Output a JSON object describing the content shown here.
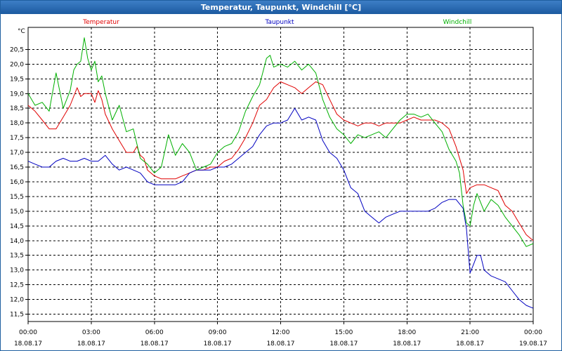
{
  "window": {
    "title": "Temperatur, Taupunkt, Windchill [°C]"
  },
  "colors": {
    "title_bar": "#1c5aa0",
    "temperatur": "#e00000",
    "taupunkt": "#0000c0",
    "windchill": "#00b000",
    "grid": "#000000"
  },
  "chart_data": {
    "type": "line",
    "title": "Temperatur, Taupunkt, Windchill [°C]",
    "ylabel": "°C",
    "xlabel": "",
    "ylim": [
      11.25,
      21.25
    ],
    "yticks": [
      11.5,
      12.0,
      12.5,
      13.0,
      13.5,
      14.0,
      14.5,
      15.0,
      15.5,
      16.0,
      16.5,
      17.0,
      17.5,
      18.0,
      18.5,
      19.0,
      19.5,
      20.0,
      20.5
    ],
    "ytick_labels": [
      "11,5",
      "12,0",
      "12,5",
      "13,0",
      "13,5",
      "14,0",
      "14,5",
      "15,0",
      "15,5",
      "16,0",
      "16,5",
      "17,0",
      "17,5",
      "18,0",
      "18,5",
      "19,0",
      "19,5",
      "20,0",
      "20,5"
    ],
    "xlim": [
      0,
      24
    ],
    "xticks": [
      0,
      3,
      6,
      9,
      12,
      15,
      18,
      21,
      24
    ],
    "xtick_time": [
      "00:00",
      "03:00",
      "06:00",
      "09:00",
      "12:00",
      "15:00",
      "18:00",
      "21:00",
      "00:00"
    ],
    "xtick_date": [
      "18.08.17",
      "18.08.17",
      "18.08.17",
      "18.08.17",
      "18.08.17",
      "18.08.17",
      "18.08.17",
      "18.08.17",
      "19.08.17"
    ],
    "grid": true,
    "legend_placement": "top",
    "series": [
      {
        "name": "Temperatur",
        "color": "#e00000",
        "x": [
          0,
          0.33,
          0.67,
          1.0,
          1.33,
          1.67,
          2.0,
          2.33,
          2.5,
          2.67,
          3.0,
          3.17,
          3.33,
          3.5,
          3.67,
          4.0,
          4.33,
          4.67,
          5.0,
          5.17,
          5.33,
          5.5,
          5.67,
          6.0,
          6.33,
          6.67,
          7.0,
          7.33,
          7.67,
          8.0,
          8.33,
          8.67,
          9.0,
          9.33,
          9.67,
          10.0,
          10.33,
          10.67,
          11.0,
          11.33,
          11.67,
          12.0,
          12.33,
          12.67,
          13.0,
          13.33,
          13.67,
          14.0,
          14.33,
          14.67,
          15.0,
          15.33,
          15.67,
          16.0,
          16.33,
          16.67,
          17.0,
          17.33,
          17.67,
          18.0,
          18.33,
          18.67,
          19.0,
          19.33,
          19.67,
          20.0,
          20.33,
          20.67,
          20.83,
          21.0,
          21.33,
          21.67,
          22.0,
          22.33,
          22.67,
          23.0,
          23.33,
          23.67,
          24.0
        ],
        "values": [
          18.6,
          18.4,
          18.1,
          17.8,
          17.8,
          18.2,
          18.6,
          19.2,
          18.9,
          19.0,
          19.0,
          18.7,
          19.1,
          18.8,
          18.3,
          17.8,
          17.4,
          17.0,
          17.0,
          17.2,
          16.9,
          16.8,
          16.4,
          16.2,
          16.1,
          16.1,
          16.1,
          16.2,
          16.3,
          16.4,
          16.4,
          16.5,
          16.5,
          16.7,
          16.8,
          17.1,
          17.5,
          18.0,
          18.6,
          18.8,
          19.2,
          19.4,
          19.3,
          19.2,
          19.0,
          19.2,
          19.4,
          19.3,
          18.8,
          18.3,
          18.1,
          18.0,
          17.9,
          18.0,
          18.0,
          17.9,
          18.0,
          18.0,
          18.0,
          18.1,
          18.2,
          18.1,
          18.1,
          18.1,
          18.0,
          17.8,
          17.2,
          16.4,
          15.6,
          15.8,
          15.9,
          15.9,
          15.8,
          15.7,
          15.2,
          15.0,
          14.6,
          14.2,
          14.0
        ]
      },
      {
        "name": "Taupunkt",
        "color": "#0000c0",
        "x": [
          0,
          0.33,
          0.67,
          1.0,
          1.33,
          1.67,
          2.0,
          2.33,
          2.67,
          3.0,
          3.33,
          3.67,
          4.0,
          4.33,
          4.67,
          5.0,
          5.33,
          5.67,
          6.0,
          6.33,
          6.67,
          7.0,
          7.33,
          7.67,
          8.0,
          8.33,
          8.67,
          9.0,
          9.33,
          9.67,
          10.0,
          10.33,
          10.67,
          11.0,
          11.33,
          11.67,
          12.0,
          12.33,
          12.67,
          13.0,
          13.33,
          13.67,
          14.0,
          14.33,
          14.67,
          15.0,
          15.33,
          15.67,
          16.0,
          16.33,
          16.67,
          17.0,
          17.33,
          17.67,
          18.0,
          18.33,
          18.67,
          19.0,
          19.33,
          19.67,
          20.0,
          20.33,
          20.67,
          20.83,
          21.0,
          21.17,
          21.33,
          21.5,
          21.67,
          22.0,
          22.33,
          22.67,
          23.0,
          23.33,
          23.67,
          24.0
        ],
        "values": [
          16.7,
          16.6,
          16.5,
          16.5,
          16.7,
          16.8,
          16.7,
          16.7,
          16.8,
          16.7,
          16.7,
          16.9,
          16.6,
          16.4,
          16.5,
          16.4,
          16.3,
          16.0,
          15.9,
          15.9,
          15.9,
          15.9,
          16.0,
          16.3,
          16.4,
          16.4,
          16.4,
          16.5,
          16.5,
          16.6,
          16.8,
          17.0,
          17.2,
          17.6,
          17.9,
          18.0,
          18.0,
          18.1,
          18.5,
          18.1,
          18.2,
          18.1,
          17.4,
          17.0,
          16.8,
          16.4,
          15.8,
          15.6,
          15.0,
          14.8,
          14.6,
          14.8,
          14.9,
          15.0,
          15.0,
          15.0,
          15.0,
          15.0,
          15.1,
          15.3,
          15.4,
          15.4,
          15.1,
          14.4,
          12.9,
          13.2,
          13.5,
          13.5,
          13.0,
          12.8,
          12.7,
          12.6,
          12.3,
          12.0,
          11.8,
          11.7
        ]
      },
      {
        "name": "Windchill",
        "color": "#00b000",
        "x": [
          0,
          0.33,
          0.67,
          1.0,
          1.33,
          1.67,
          2.0,
          2.17,
          2.33,
          2.5,
          2.67,
          2.83,
          3.0,
          3.17,
          3.33,
          3.5,
          3.67,
          4.0,
          4.33,
          4.67,
          5.0,
          5.33,
          5.67,
          6.0,
          6.33,
          6.67,
          7.0,
          7.33,
          7.67,
          8.0,
          8.33,
          8.67,
          9.0,
          9.33,
          9.67,
          10.0,
          10.33,
          10.67,
          11.0,
          11.33,
          11.5,
          11.67,
          12.0,
          12.33,
          12.67,
          13.0,
          13.33,
          13.67,
          14.0,
          14.33,
          14.67,
          15.0,
          15.33,
          15.67,
          16.0,
          16.33,
          16.67,
          17.0,
          17.33,
          17.67,
          18.0,
          18.33,
          18.67,
          19.0,
          19.33,
          19.67,
          20.0,
          20.33,
          20.5,
          20.67,
          20.83,
          21.0,
          21.17,
          21.33,
          21.67,
          22.0,
          22.33,
          22.67,
          23.0,
          23.33,
          23.67,
          24.0
        ],
        "values": [
          19.0,
          18.6,
          18.7,
          18.4,
          19.7,
          18.5,
          19.1,
          19.8,
          20.0,
          20.1,
          20.9,
          20.2,
          19.8,
          20.1,
          19.4,
          19.6,
          19.0,
          18.1,
          18.6,
          17.7,
          17.8,
          16.8,
          16.6,
          16.3,
          16.5,
          17.6,
          16.9,
          17.3,
          17.0,
          16.4,
          16.5,
          16.6,
          17.0,
          17.2,
          17.3,
          17.7,
          18.4,
          18.9,
          19.3,
          20.2,
          20.3,
          19.9,
          20.0,
          19.9,
          20.1,
          19.8,
          20.0,
          19.7,
          18.8,
          18.2,
          17.8,
          17.6,
          17.3,
          17.6,
          17.5,
          17.6,
          17.7,
          17.5,
          17.8,
          18.1,
          18.3,
          18.3,
          18.2,
          18.3,
          18.0,
          17.7,
          17.1,
          16.7,
          16.3,
          15.2,
          14.6,
          14.5,
          15.2,
          15.6,
          15.0,
          15.4,
          15.2,
          14.8,
          14.5,
          14.2,
          13.8,
          13.9
        ]
      }
    ]
  }
}
